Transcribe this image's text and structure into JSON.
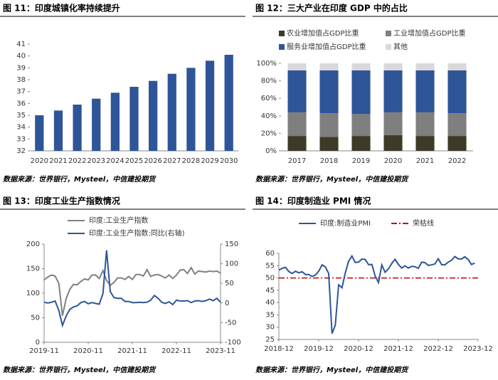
{
  "chart_data": [
    {
      "type": "bar",
      "title": "图 11：印度城镇化率持续提升",
      "source": "数据来源：世界银行，Mysteel，中信建投期货",
      "categories": [
        "2020",
        "2021",
        "2022",
        "2023",
        "2024",
        "2025",
        "2026",
        "2027",
        "2028",
        "2029",
        "2030"
      ],
      "values": [
        35.0,
        35.4,
        35.9,
        36.4,
        36.9,
        37.4,
        37.9,
        38.5,
        39.0,
        39.6,
        40.1
      ],
      "color": "#2e5597",
      "ylim": [
        32,
        41
      ],
      "yticks": [
        32,
        33,
        34,
        35,
        36,
        37,
        38,
        39,
        40,
        41
      ]
    },
    {
      "type": "stacked_bar",
      "title": "图 12：三大产业在印度 GDP 中的占比",
      "source": "数据来源：世界银行，Mysteel，中信建投期货",
      "categories": [
        "2017",
        "2018",
        "2019",
        "2020",
        "2021",
        "2022"
      ],
      "series": [
        {
          "name": "农业增加值占GDP比重",
          "color": "#3d3a28",
          "values": [
            17,
            16,
            17,
            18,
            17,
            17
          ]
        },
        {
          "name": "工业增加值占GDP比重",
          "color": "#7f7f7f",
          "values": [
            27,
            27,
            25,
            26,
            27,
            26
          ]
        },
        {
          "name": "服务业增加值占GDP比重",
          "color": "#2e5597",
          "values": [
            48,
            49,
            50,
            48,
            48,
            49
          ]
        },
        {
          "name": "其他",
          "color": "#d9d9d9",
          "values": [
            8,
            8,
            8,
            8,
            8,
            8
          ]
        }
      ],
      "ylim": [
        0,
        100
      ],
      "yticks": [
        {
          "value": 0,
          "label": "0%"
        },
        {
          "value": 20,
          "label": "20%"
        },
        {
          "value": 40,
          "label": "40%"
        },
        {
          "value": 60,
          "label": "60%"
        },
        {
          "value": 80,
          "label": "80%"
        },
        {
          "value": 100,
          "label": "100%"
        }
      ]
    },
    {
      "type": "line",
      "title": "图 13：印度工业生产指数情况",
      "source": "数据来源：世界银行，Mysteel，中信建投期货",
      "categories": [
        "2019-11",
        null,
        null,
        null,
        null,
        null,
        null,
        null,
        null,
        null,
        null,
        null,
        "2020-11",
        null,
        null,
        null,
        null,
        null,
        null,
        null,
        null,
        null,
        null,
        null,
        "2021-11",
        null,
        null,
        null,
        null,
        null,
        null,
        null,
        null,
        null,
        null,
        null,
        "2022-11",
        null,
        null,
        null,
        null,
        null,
        null,
        null,
        null,
        null,
        null,
        null,
        "2023-11"
      ],
      "series": [
        {
          "name": "印度:工业生产指数",
          "color": "#808080",
          "values": [
            127,
            133,
            137,
            135,
            120,
            54,
            89,
            108,
            118,
            117,
            124,
            129,
            127,
            137,
            137,
            130,
            146,
            126,
            116,
            122,
            131,
            131,
            128,
            134,
            128,
            138,
            138,
            135,
            148,
            134,
            137,
            138,
            135,
            131,
            137,
            130,
            137,
            147,
            148,
            140,
            152,
            139,
            145,
            144,
            143,
            145,
            144,
            145,
            141
          ]
        },
        {
          "name": "印度:工业生产指数:同比(右轴)",
          "color": "#2e5597",
          "axis": "y2",
          "values": [
            2,
            0,
            2,
            5,
            -19,
            -57,
            -33,
            -16,
            -10,
            -7,
            1,
            4,
            -2,
            1,
            -1,
            -3,
            24,
            134,
            29,
            14,
            12,
            12,
            4,
            4,
            1,
            1,
            2,
            1,
            2,
            7,
            19,
            12,
            2,
            -1,
            3,
            -4,
            7,
            5,
            5,
            6,
            1,
            5,
            6,
            4,
            6,
            10,
            6,
            12,
            2
          ]
        }
      ],
      "ylim": [
        0,
        200
      ],
      "yticks": [
        0,
        50,
        100,
        150,
        200
      ],
      "y2lim": [
        -100,
        150
      ],
      "y2ticks": [
        -100,
        -50,
        0,
        50,
        100,
        150
      ]
    },
    {
      "type": "line",
      "title": "图 14：印度制造业 PMI 情况",
      "source": "数据来源：世界银行，Mysteel，中信建投期货",
      "categories": [
        "2018-12",
        null,
        null,
        null,
        null,
        null,
        null,
        null,
        null,
        null,
        null,
        null,
        "2019-12",
        null,
        null,
        null,
        null,
        null,
        null,
        null,
        null,
        null,
        null,
        null,
        "2020-12",
        null,
        null,
        null,
        null,
        null,
        null,
        null,
        null,
        null,
        null,
        null,
        "2021-12",
        null,
        null,
        null,
        null,
        null,
        null,
        null,
        null,
        null,
        null,
        null,
        "2022-12",
        null,
        null,
        null,
        null,
        null,
        null,
        null,
        null,
        null,
        null,
        null,
        "2023-12"
      ],
      "series": [
        {
          "name": "印度:制造业PMI",
          "color": "#2e5597",
          "values": [
            53.2,
            53.9,
            54.3,
            52.6,
            51.8,
            52.7,
            52.1,
            52.5,
            51.4,
            51.4,
            50.6,
            51.2,
            52.7,
            55.3,
            54.5,
            51.8,
            27.4,
            30.8,
            47.2,
            46.0,
            52.0,
            56.8,
            58.9,
            56.3,
            56.4,
            57.7,
            57.5,
            55.4,
            55.5,
            50.8,
            48.1,
            55.3,
            52.3,
            53.7,
            55.9,
            57.6,
            55.5,
            54.0,
            54.9,
            54.0,
            54.7,
            54.6,
            53.9,
            56.4,
            56.2,
            55.1,
            55.3,
            55.7,
            57.8,
            55.4,
            55.3,
            56.4,
            57.2,
            58.7,
            57.8,
            57.7,
            58.6,
            57.5,
            55.5,
            56.0,
            null
          ]
        }
      ],
      "reference_lines": [
        {
          "name": "荣枯线",
          "value": 50,
          "color": "#c00000"
        }
      ],
      "ylim": [
        25,
        60
      ],
      "yticks": [
        25,
        30,
        35,
        40,
        45,
        50,
        55,
        60
      ]
    }
  ]
}
